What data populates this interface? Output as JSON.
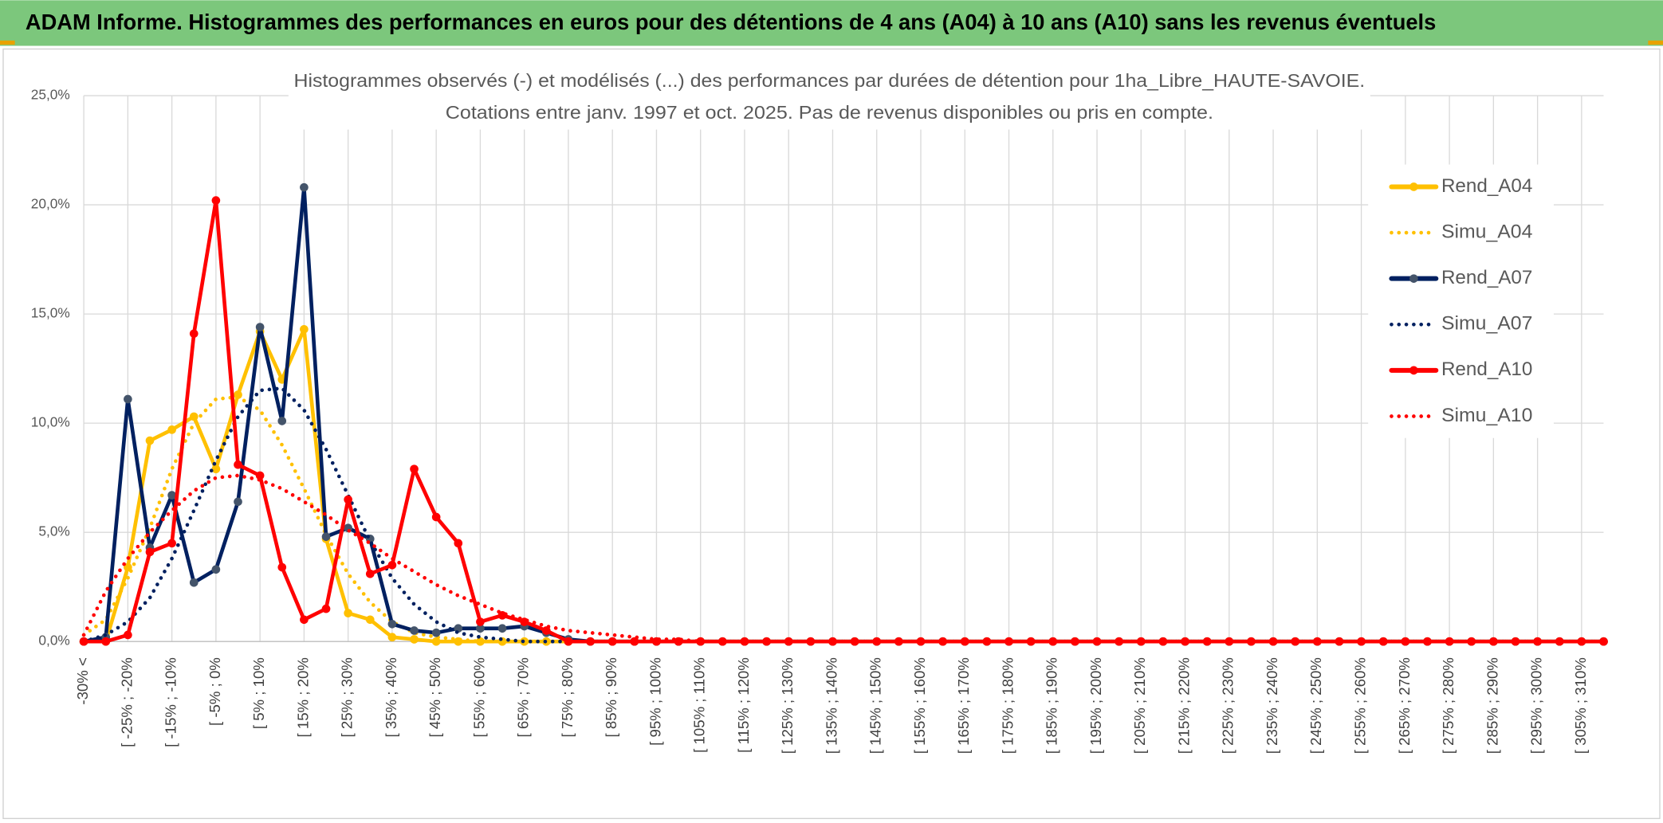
{
  "header": {
    "title": "ADAM Informe. Histogrammes des performances en euros pour des détentions de 4 ans (A04) à 10 ans (A10) sans les revenus éventuels"
  },
  "chart_data": {
    "type": "line",
    "title": "Histogrammes observés (-) et modélisés (...) des performances par durées de détention pour 1ha_Libre_HAUTE-SAVOIE.",
    "subtitle": "Cotations entre janv. 1997 et oct. 2025. Pas de revenus disponibles ou pris en compte.",
    "categories": [
      "-30% <",
      null,
      "[ -25% ; -20%",
      null,
      "[ -15% ; -10%",
      null,
      "[ -5% ; 0%",
      null,
      "[ 5% ; 10%",
      null,
      "[ 15% ; 20%",
      null,
      "[ 25% ; 30%",
      null,
      "[ 35% ; 40%",
      null,
      "[ 45% ; 50%",
      null,
      "[ 55% ; 60%",
      null,
      "[ 65% ; 70%",
      null,
      "[ 75% ; 80%",
      null,
      "[ 85% ; 90%",
      null,
      "[ 95% ; 100%",
      null,
      "[ 105% ; 110%",
      null,
      "[ 115% ; 120%",
      null,
      "[ 125% ; 130%",
      null,
      "[ 135% ; 140%",
      null,
      "[ 145% ; 150%",
      null,
      "[ 155% ; 160%",
      null,
      "[ 165% ; 170%",
      null,
      "[ 175% ; 180%",
      null,
      "[ 185% ; 190%",
      null,
      "[ 195% ; 200%",
      null,
      "[ 205% ; 210%",
      null,
      "[ 215% ; 220%",
      null,
      "[ 225% ; 230%",
      null,
      "[ 235% ; 240%",
      null,
      "[ 245% ; 250%",
      null,
      "[ 255% ; 260%",
      null,
      "[ 265% ; 270%",
      null,
      "[ 275% ; 280%",
      null,
      "[ 285% ; 290%",
      null,
      "[ 295% ; 300%",
      null,
      "[ 305% ; 310%",
      null
    ],
    "series": [
      {
        "name": "Rend_A04",
        "color": "#ffc000",
        "marker_color": "#ffc000",
        "line_style": "solid",
        "values": [
          0,
          0,
          3.4,
          9.2,
          9.7,
          10.3,
          7.9,
          11.3,
          14.2,
          12.0,
          14.3,
          4.7,
          1.3,
          1.0,
          0.2,
          0.1,
          0,
          0,
          0,
          0,
          0,
          0,
          0,
          0,
          0,
          0,
          0,
          0,
          0,
          0,
          0,
          0,
          0,
          0,
          0,
          0,
          0,
          0,
          0,
          0,
          0,
          0,
          0,
          0,
          0,
          0,
          0,
          0,
          0,
          0,
          0,
          0,
          0,
          0,
          0,
          0,
          0,
          0,
          0,
          0,
          0,
          0,
          0,
          0,
          0,
          0,
          0,
          0,
          0,
          0
        ]
      },
      {
        "name": "Simu_A04",
        "color": "#ffc000",
        "line_style": "dotted",
        "values": [
          0.3,
          1.0,
          2.9,
          5.2,
          7.9,
          10.0,
          11.1,
          11.2,
          10.6,
          9.0,
          7.0,
          4.9,
          3.1,
          1.8,
          0.9,
          0.4,
          0.2,
          0.1,
          0,
          0,
          0,
          0,
          0,
          0,
          0,
          0,
          0,
          0,
          0,
          0,
          0,
          0,
          0,
          0,
          0,
          0,
          0,
          0,
          0,
          0,
          0,
          0,
          0,
          0,
          0,
          0,
          0,
          0,
          0,
          0,
          0,
          0,
          0,
          0,
          0,
          0,
          0,
          0,
          0,
          0,
          0,
          0,
          0,
          0,
          0,
          0,
          0,
          0,
          0,
          0
        ]
      },
      {
        "name": "Rend_A07",
        "color": "#002060",
        "marker_color": "#44546a",
        "line_style": "solid",
        "values": [
          0,
          0.2,
          11.1,
          4.3,
          6.7,
          2.7,
          3.3,
          6.4,
          14.4,
          10.1,
          20.8,
          4.8,
          5.2,
          4.7,
          0.8,
          0.5,
          0.4,
          0.6,
          0.6,
          0.6,
          0.7,
          0.4,
          0.1,
          0,
          0,
          0,
          0,
          0,
          0,
          0,
          0,
          0,
          0,
          0,
          0,
          0,
          0,
          0,
          0,
          0,
          0,
          0,
          0,
          0,
          0,
          0,
          0,
          0,
          0,
          0,
          0,
          0,
          0,
          0,
          0,
          0,
          0,
          0,
          0,
          0,
          0,
          0,
          0,
          0,
          0,
          0,
          0,
          0,
          0,
          0
        ]
      },
      {
        "name": "Simu_A07",
        "color": "#002060",
        "line_style": "dotted",
        "values": [
          0,
          0.3,
          0.9,
          2.0,
          3.8,
          6.0,
          8.3,
          10.3,
          11.5,
          11.6,
          10.6,
          8.8,
          6.7,
          4.6,
          2.9,
          1.7,
          0.9,
          0.4,
          0.2,
          0.1,
          0,
          0,
          0,
          0,
          0,
          0,
          0,
          0,
          0,
          0,
          0,
          0,
          0,
          0,
          0,
          0,
          0,
          0,
          0,
          0,
          0,
          0,
          0,
          0,
          0,
          0,
          0,
          0,
          0,
          0,
          0,
          0,
          0,
          0,
          0,
          0,
          0,
          0,
          0,
          0,
          0,
          0,
          0,
          0,
          0,
          0,
          0,
          0,
          0,
          0
        ]
      },
      {
        "name": "Rend_A10",
        "color": "#ff0000",
        "marker_color": "#ff0000",
        "line_style": "solid",
        "values": [
          0,
          0,
          0.3,
          4.1,
          4.5,
          14.1,
          20.2,
          8.1,
          7.6,
          3.4,
          1.0,
          1.5,
          6.5,
          3.1,
          3.5,
          7.9,
          5.7,
          4.5,
          0.9,
          1.2,
          0.9,
          0.5,
          0,
          0,
          0,
          0,
          0,
          0,
          0,
          0,
          0,
          0,
          0,
          0,
          0,
          0,
          0,
          0,
          0,
          0,
          0,
          0,
          0,
          0,
          0,
          0,
          0,
          0,
          0,
          0,
          0,
          0,
          0,
          0,
          0,
          0,
          0,
          0,
          0,
          0,
          0,
          0,
          0,
          0,
          0,
          0,
          0,
          0,
          0,
          0
        ]
      },
      {
        "name": "Simu_A10",
        "color": "#ff0000",
        "line_style": "dotted",
        "values": [
          0.3,
          2.3,
          3.8,
          5.0,
          6.0,
          6.9,
          7.5,
          7.6,
          7.4,
          7.0,
          6.4,
          5.8,
          5.1,
          4.5,
          3.8,
          3.2,
          2.6,
          2.1,
          1.7,
          1.3,
          1.0,
          0.7,
          0.5,
          0.4,
          0.3,
          0.2,
          0.1,
          0.1,
          0,
          0,
          0,
          0,
          0,
          0,
          0,
          0,
          0,
          0,
          0,
          0,
          0,
          0,
          0,
          0,
          0,
          0,
          0,
          0,
          0,
          0,
          0,
          0,
          0,
          0,
          0,
          0,
          0,
          0,
          0,
          0,
          0,
          0,
          0,
          0,
          0,
          0,
          0,
          0,
          0,
          0
        ]
      }
    ],
    "ylim": [
      0,
      25
    ],
    "yticks": [
      {
        "value": 0,
        "label": "0,0%"
      },
      {
        "value": 5,
        "label": "5,0%"
      },
      {
        "value": 10,
        "label": "10,0%"
      },
      {
        "value": 15,
        "label": "15,0%"
      },
      {
        "value": 20,
        "label": "20,0%"
      },
      {
        "value": 25,
        "label": "25,0%"
      }
    ],
    "grid": true,
    "legend": "right"
  }
}
